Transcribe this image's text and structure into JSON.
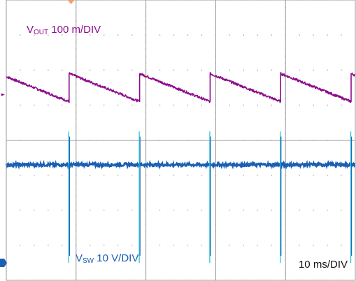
{
  "chart_data": {
    "type": "line",
    "divisions": {
      "x": 5,
      "y": 8
    },
    "time_scale_label": "10 ms/DIV",
    "channels": [
      {
        "id": "vout",
        "name_main": "V",
        "name_sub": "OUT",
        "scale_text": "100 m/DIV",
        "color": "#8b0a8b",
        "ground_level_div": 5.3,
        "ramp_start_div": 5.9,
        "ramp_end_div": 5.1,
        "period_div": 1.01,
        "first_reset_div": 0.9
      },
      {
        "id": "vsw",
        "name_main": "V",
        "name_sub": "SW",
        "scale_text": "10 V/DIV",
        "color": "#1a5fb4",
        "spike_color": "#2ac4d8",
        "ground_level_div": 0.5,
        "baseline_div": 3.3,
        "spike_top_div": 4.25,
        "spike_bottom_div": 0.5,
        "first_spike_div": 0.9,
        "period_div": 1.01
      }
    ]
  },
  "colors": {
    "grid": "#9a9a9a",
    "trigger_marker": "#f0a070",
    "ground_marker_vsw": "#1a5fb4",
    "ground_marker_vout": "#8b0a8b"
  }
}
